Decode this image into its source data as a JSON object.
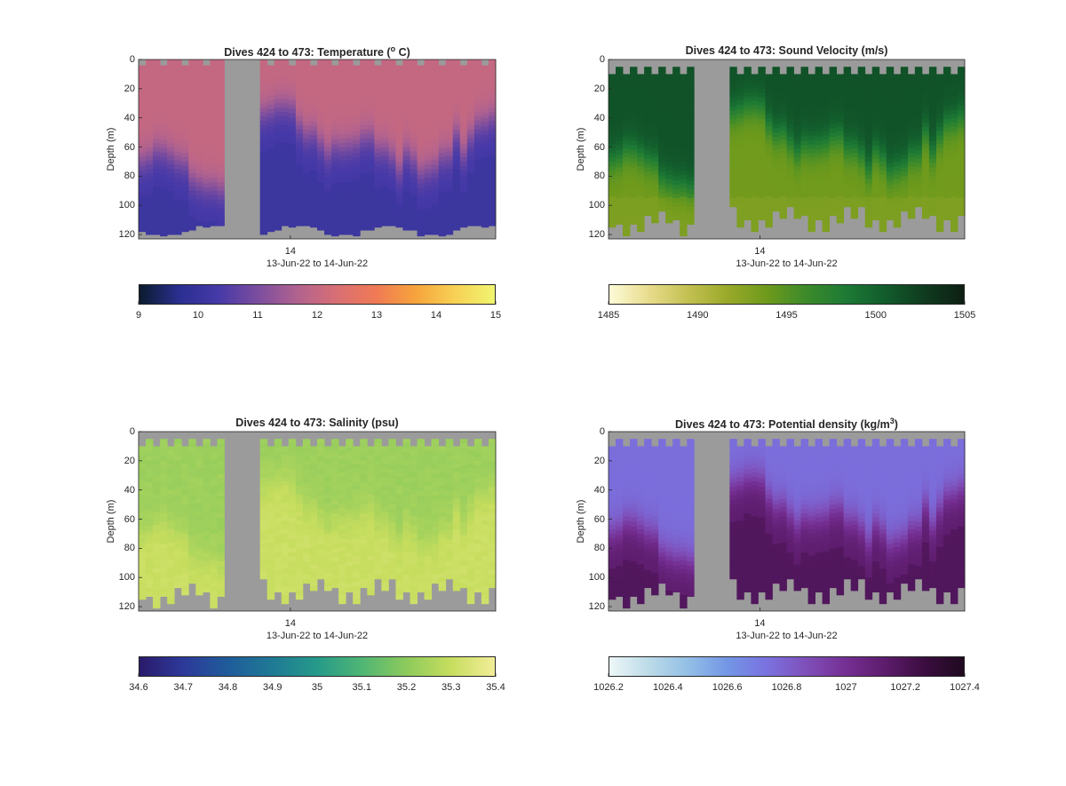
{
  "chart_data": [
    {
      "type": "heatmap",
      "title": "Dives 424 to 473: Temperature (",
      "title_super": "o",
      "title_tail": " C)",
      "ylabel": "Depth (m)",
      "xlabel": "13-Jun-22 to 14-Jun-22",
      "x_ticks": [
        "14"
      ],
      "y_ticks": [
        0,
        20,
        40,
        60,
        80,
        100,
        120
      ],
      "ylim": [
        0,
        123
      ],
      "y_reversed": true,
      "dives": [
        424,
        473
      ],
      "data_gap": "no data between roughly dive 436 and dive 442",
      "field": "temperature (deg C)",
      "profile": {
        "surface_value": 12.0,
        "bottom_value": 10.2,
        "mixed_layer_depth_m": [
          60,
          85,
          90,
          70,
          55,
          60,
          55,
          40,
          45,
          50
        ]
      },
      "colorbar": {
        "min": 9,
        "max": 15,
        "ticks": [
          "9",
          "10",
          "11",
          "12",
          "13",
          "14",
          "15"
        ],
        "colors": [
          "#0b1b2e",
          "#2a2f8f",
          "#4639a8",
          "#7b4d9f",
          "#b1628f",
          "#d86f74",
          "#f07a54",
          "#f6a43c",
          "#f7d155",
          "#f0f570"
        ]
      }
    },
    {
      "type": "heatmap",
      "title": "Dives 424 to 473: Sound Velocity (m/s)",
      "ylabel": "Depth (m)",
      "xlabel": "13-Jun-22 to 14-Jun-22",
      "x_ticks": [
        "14"
      ],
      "y_ticks": [
        0,
        20,
        40,
        60,
        80,
        100,
        120
      ],
      "ylim": [
        0,
        123
      ],
      "y_reversed": true,
      "dives": [
        424,
        473
      ],
      "data_gap": "no data between roughly dive 436 and dive 442",
      "field": "sound velocity (m/s)",
      "profile": {
        "surface_value": 1501.0,
        "bottom_value": 1493.0
      },
      "colorbar": {
        "min": 1485,
        "max": 1505,
        "ticks": [
          "1485",
          "1490",
          "1495",
          "1500",
          "1505"
        ],
        "colors": [
          "#fdfbd8",
          "#e8dc8c",
          "#c3c052",
          "#9aa92a",
          "#6e9a1c",
          "#3c8a2a",
          "#1d7a35",
          "#125c2c",
          "#0f3b1f",
          "#0e1f13"
        ]
      }
    },
    {
      "type": "heatmap",
      "title": "Dives 424 to 473: Salinity (psu)",
      "ylabel": "Depth (m)",
      "xlabel": "13-Jun-22 to 14-Jun-22",
      "x_ticks": [
        "14"
      ],
      "y_ticks": [
        0,
        20,
        40,
        60,
        80,
        100,
        120
      ],
      "ylim": [
        0,
        123
      ],
      "y_reversed": true,
      "dives": [
        424,
        473
      ],
      "data_gap": "no data between roughly dive 436 and dive 442",
      "field": "salinity (psu)",
      "profile": {
        "surface_value": 35.22,
        "bottom_value": 35.3
      },
      "colorbar": {
        "min": 34.6,
        "max": 35.4,
        "ticks": [
          "34.6",
          "34.7",
          "34.8",
          "34.9",
          "35",
          "35.1",
          "35.2",
          "35.3",
          "35.4"
        ],
        "colors": [
          "#2a1a6b",
          "#2d3a9a",
          "#1f5c9a",
          "#1f7a95",
          "#269a8a",
          "#4fb574",
          "#8cca5c",
          "#c6dd5e",
          "#f2ed98"
        ]
      }
    },
    {
      "type": "heatmap",
      "title": "Dives 424 to 473: Potential density (kg/m",
      "title_super": "3",
      "title_tail": ")",
      "ylabel": "Depth (m)",
      "xlabel": "13-Jun-22 to 14-Jun-22",
      "x_ticks": [
        "14"
      ],
      "y_ticks": [
        0,
        20,
        40,
        60,
        80,
        100,
        120
      ],
      "ylim": [
        0,
        123
      ],
      "y_reversed": true,
      "dives": [
        424,
        473
      ],
      "data_gap": "no data between roughly dive 436 and dive 442",
      "field": "potential density (kg/m^3)",
      "profile": {
        "surface_value": 1026.75,
        "bottom_value": 1027.15
      },
      "colorbar": {
        "min": 1026.2,
        "max": 1027.4,
        "ticks": [
          "1026.2",
          "1026.4",
          "1026.6",
          "1026.8",
          "1027",
          "1027.2",
          "1027.4"
        ],
        "colors": [
          "#edf7f7",
          "#bcdbe8",
          "#93bfe6",
          "#7396e5",
          "#7a72e0",
          "#7f4fb9",
          "#752f93",
          "#5d1c6c",
          "#3b0d40",
          "#1f0a1f"
        ]
      }
    }
  ]
}
